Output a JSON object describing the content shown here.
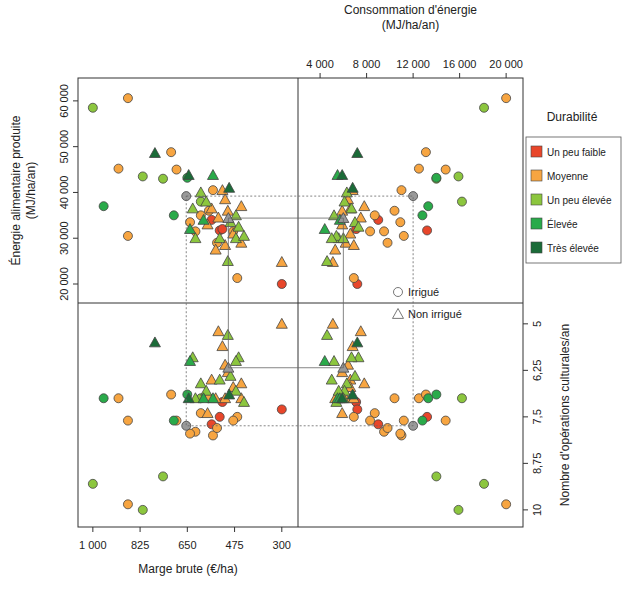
{
  "chart_data": {
    "type": "scatter_matrix",
    "x_label": "Marge brute (€/ha)",
    "x2_label": [
      "Consommation d'énergie",
      "(MJ/ha/an)"
    ],
    "y_label": [
      "Énergie alimentaire produite",
      "(MJ/ha/an)"
    ],
    "y2_label": "Nombre d'opérations culturales/an",
    "legend_title": "Durabilité",
    "legend": "right",
    "xlim": [
      1055,
      240
    ],
    "xticks": [
      {
        "value": 1000,
        "label": "1 000"
      },
      825,
      650,
      475,
      300
    ],
    "x2lim": [
      2100,
      21450
    ],
    "x2ticks": [
      {
        "value": 4000,
        "label": "4 000"
      },
      {
        "value": 8000,
        "label": "8 000"
      },
      {
        "value": 12000,
        "label": "12 000"
      },
      {
        "value": 16000,
        "label": "16 000"
      },
      {
        "value": 20000,
        "label": "20 000"
      }
    ],
    "ylim": [
      15850,
      65000
    ],
    "yticks": [
      {
        "value": 20000,
        "label": "20 000"
      },
      {
        "value": 30000,
        "label": "30 000"
      },
      {
        "value": 40000,
        "label": "40 000"
      },
      {
        "value": 50000,
        "label": "50 000"
      },
      {
        "value": 60000,
        "label": "60 000"
      }
    ],
    "y2lim": [
      4.44,
      10.46
    ],
    "y2ticks": [
      5,
      {
        "value": 6.25,
        "label": "6,25"
      },
      {
        "value": 7.5,
        "label": "7,5"
      },
      {
        "value": 8.75,
        "label": "8,75"
      },
      10
    ],
    "irrigation_legend": [
      {
        "label": "Irrigué",
        "marker": "circle",
        "irrigue": true
      },
      {
        "label": "Non irrigué",
        "marker": "triangle",
        "irrigue": false
      }
    ],
    "series": [
      {
        "name": "Un peu faible",
        "color": "#e8462a",
        "marge": [
          530,
          520,
          300,
          560
        ],
        "energie": [
          31700,
          32000,
          20000,
          34000
        ],
        "consommation": [
          13200,
          7100,
          7200,
          9000
        ],
        "operations": [
          7.5,
          7.1,
          7.3,
          7.7
        ],
        "irrigue": [
          true,
          true,
          true,
          true
        ]
      },
      {
        "name": "Moyenne",
        "color": "#f7a541",
        "marge": [
          870,
          905,
          710,
          690,
          870,
          620,
          600,
          570,
          465,
          555,
          640,
          540,
          480,
          560,
          520,
          510,
          500,
          480,
          450,
          545,
          300,
          575,
          510,
          535,
          450
        ],
        "energie": [
          60600,
          45200,
          48800,
          45000,
          30500,
          31500,
          35000,
          36000,
          21300,
          40500,
          33500,
          29000,
          31500,
          36500,
          40500,
          38500,
          36000,
          31000,
          29000,
          27500,
          24800,
          33000,
          28500,
          34500,
          37000
        ],
        "consommation": [
          20000,
          12500,
          13100,
          14800,
          11200,
          9500,
          8700,
          10400,
          6900,
          11000,
          10900,
          9800,
          8300,
          6600,
          6800,
          6400,
          5900,
          6600,
          6200,
          5300,
          5100,
          5900,
          6900,
          7500,
          7800
        ],
        "operations": [
          9.85,
          7.0,
          6.9,
          7.6,
          7.6,
          7.9,
          7.4,
          7.0,
          7.5,
          8.0,
          7.95,
          7.8,
          7.6,
          6.5,
          5.6,
          6.1,
          6.3,
          6.7,
          7.0,
          7.0,
          5.0,
          7.4,
          7.0,
          5.2,
          6.6
        ],
        "irrigue": [
          true,
          true,
          true,
          true,
          true,
          true,
          true,
          true,
          true,
          true,
          true,
          true,
          true,
          false,
          false,
          false,
          false,
          false,
          false,
          false,
          false,
          false,
          false,
          false,
          false
        ]
      },
      {
        "name": "Un peu élevée",
        "color": "#8cc63e",
        "marge": [
          1000,
          815,
          740,
          600,
          600,
          580,
          490,
          470,
          460,
          440,
          530,
          500,
          620,
          470,
          630
        ],
        "energie": [
          58500,
          43500,
          43000,
          38000,
          40000,
          38000,
          33500,
          30000,
          32500,
          30500,
          30000,
          25000,
          30000,
          35000,
          36500
        ],
        "consommation": [
          18100,
          15900,
          14000,
          16200,
          6300,
          6100,
          7000,
          5600,
          7300,
          5400,
          5000,
          4600,
          6000,
          5200,
          6700
        ],
        "operations": [
          9.3,
          10.0,
          9.1,
          7.0,
          6.6,
          6.8,
          6.4,
          6.8,
          5.9,
          7.1,
          6.5,
          5.3,
          7.0,
          6.0,
          5.9
        ],
        "irrigue": [
          true,
          true,
          true,
          true,
          false,
          false,
          false,
          false,
          false,
          false,
          false,
          false,
          false,
          false,
          false
        ]
      },
      {
        "name": "Élevée",
        "color": "#2aaa4a",
        "marge": [
          960,
          700,
          650,
          555,
          640,
          590
        ],
        "energie": [
          37000,
          35000,
          43200,
          43800,
          32000,
          34000
        ],
        "consommation": [
          13300,
          12800,
          14000,
          5500,
          4400,
          5700
        ],
        "operations": [
          7.0,
          7.6,
          6.9,
          7.0,
          6.0,
          7.0
        ],
        "irrigue": [
          true,
          true,
          true,
          false,
          false,
          false
        ]
      },
      {
        "name": "Très élevée",
        "color": "#1b6b38",
        "marge": [
          770,
          645,
          495
        ],
        "energie": [
          48600,
          43800,
          41000
        ],
        "consommation": [
          7200,
          5900,
          6800
        ],
        "operations": [
          5.5,
          7.0,
          6.9
        ],
        "irrigue": [
          false,
          false,
          false
        ]
      }
    ],
    "means": [
      {
        "irrigue": true,
        "color": "#999999",
        "line_style": "dotted",
        "marge": 654,
        "energie": 39200,
        "consommation": 12000,
        "operations": 7.74
      },
      {
        "irrigue": false,
        "color": "#999999",
        "line_style": "solid",
        "marge": 498,
        "energie": 34400,
        "consommation": 6000,
        "operations": 6.18
      }
    ]
  }
}
